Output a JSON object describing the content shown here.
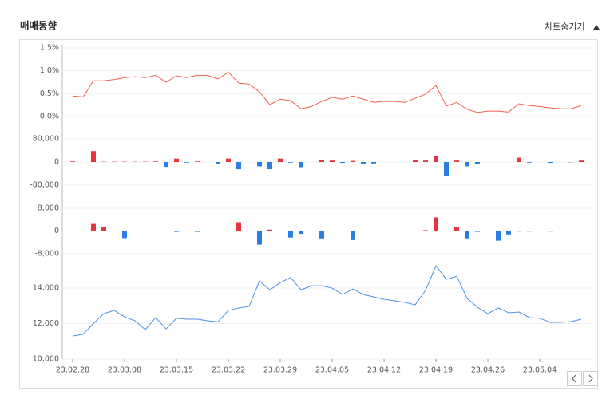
{
  "header": {
    "title": "매매동향",
    "toggle": "차트숨기기"
  },
  "chart_data": [
    {
      "type": "line",
      "color": "#f0604e",
      "values": [
        0.45,
        0.43,
        0.78,
        0.78,
        0.81,
        0.85,
        0.87,
        0.85,
        0.9,
        0.75,
        0.89,
        0.85,
        0.9,
        0.9,
        0.82,
        0.97,
        0.73,
        0.71,
        0.54,
        0.26,
        0.38,
        0.35,
        0.17,
        0.22,
        0.33,
        0.42,
        0.38,
        0.45,
        0.38,
        0.31,
        0.33,
        0.33,
        0.31,
        0.4,
        0.49,
        0.68,
        0.23,
        0.31,
        0.16,
        0.09,
        0.12,
        0.12,
        0.1,
        0.28,
        0.24,
        0.22,
        0.19,
        0.17,
        0.17,
        0.24
      ],
      "ylim": [
        -0.05,
        1.5
      ],
      "yticks": [
        {
          "value": 1.5,
          "label": "1.5%"
        },
        {
          "value": 1.0,
          "label": "1.0%"
        },
        {
          "value": 0.5,
          "label": "0.5%"
        },
        {
          "value": 0,
          "label": "0.0%"
        }
      ],
      "grid": true
    },
    {
      "type": "bar",
      "positive_color": "#e8343e",
      "negative_color": "#2a7de1",
      "values": [
        2000,
        0,
        38000,
        1000,
        1000,
        1000,
        1000,
        1000,
        2000,
        -17000,
        12000,
        -2000,
        2000,
        0,
        -8000,
        12000,
        -25000,
        0,
        -15000,
        -25000,
        12000,
        -2000,
        -18000,
        0,
        6000,
        5000,
        -3000,
        4000,
        -7000,
        -5000,
        0,
        0,
        0,
        6000,
        5000,
        20000,
        -47000,
        5000,
        -15000,
        -6000,
        0,
        0,
        0,
        15000,
        -2000,
        0,
        -3000,
        0,
        -1000,
        5000
      ],
      "ylim": [
        -100000,
        100000
      ],
      "yticks": [
        {
          "value": 80000,
          "label": "80,000"
        },
        0,
        {
          "value": -80000,
          "label": "-80,000"
        }
      ],
      "grid": true
    },
    {
      "type": "bar",
      "positive_color": "#e8343e",
      "negative_color": "#2a7de1",
      "values": [
        0,
        0,
        2500,
        1500,
        0,
        -2500,
        0,
        0,
        0,
        0,
        -300,
        0,
        -300,
        0,
        0,
        0,
        3100,
        0,
        -4800,
        500,
        0,
        -2300,
        -1000,
        0,
        -2600,
        0,
        0,
        -3200,
        0,
        0,
        0,
        0,
        0,
        0,
        300,
        4800,
        0,
        1500,
        -2600,
        -300,
        0,
        -3400,
        -1200,
        -200,
        -200,
        0,
        -200,
        0,
        0,
        0
      ],
      "ylim": [
        -10000,
        10000
      ],
      "yticks": [
        {
          "value": 8000,
          "label": "8,000"
        },
        0,
        {
          "value": -8000,
          "label": "-8,000"
        }
      ],
      "grid": true
    },
    {
      "type": "line",
      "color": "#4a90e2",
      "categories": [
        "23.02.28",
        null,
        null,
        null,
        null,
        "23.03.08",
        null,
        null,
        null,
        null,
        "23.03.15",
        null,
        null,
        null,
        null,
        "23.03.22",
        null,
        null,
        null,
        null,
        "23.03.29",
        null,
        null,
        null,
        null,
        "23.04.05",
        null,
        null,
        null,
        null,
        "23.04.12",
        null,
        null,
        null,
        null,
        "23.04.19",
        null,
        null,
        null,
        null,
        "23.04.26",
        null,
        null,
        null,
        null,
        "23.05.04",
        null,
        null,
        null,
        null
      ],
      "values": [
        11300,
        11400,
        12000,
        12560,
        12740,
        12380,
        12160,
        11660,
        12340,
        11700,
        12300,
        12250,
        12250,
        12160,
        12100,
        12740,
        12880,
        12970,
        14400,
        13900,
        14300,
        14600,
        13900,
        14130,
        14130,
        14000,
        13640,
        13950,
        13640,
        13500,
        13370,
        13280,
        13190,
        13060,
        13870,
        15260,
        14490,
        14670,
        13420,
        12920,
        12560,
        12880,
        12610,
        12650,
        12340,
        12300,
        12070,
        12070,
        12110,
        12250
      ],
      "ylim": [
        10000,
        15400
      ],
      "yticks": [
        {
          "value": 14000,
          "label": "14,000"
        },
        {
          "value": 12000,
          "label": "12,000"
        },
        {
          "value": 10000,
          "label": "10,000"
        }
      ],
      "grid": true
    }
  ]
}
